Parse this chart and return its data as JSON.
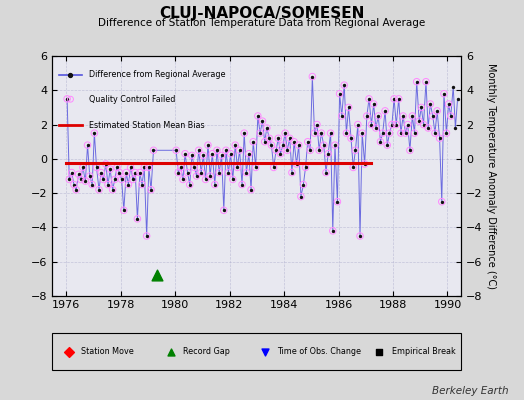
{
  "title": "CLUJ-NAPOCA/SOMESEN",
  "subtitle": "Difference of Station Temperature Data from Regional Average",
  "ylabel": "Monthly Temperature Anomaly Difference (°C)",
  "xlabel_text": "Berkeley Earth",
  "xlim": [
    1975.5,
    1990.5
  ],
  "ylim": [
    -8,
    6
  ],
  "yticks": [
    -8,
    -6,
    -4,
    -2,
    0,
    2,
    4,
    6
  ],
  "xticks": [
    1976,
    1978,
    1980,
    1982,
    1984,
    1986,
    1988,
    1990
  ],
  "bias_line_y": -0.25,
  "bias_line_x_start": 1976.0,
  "bias_line_x_end": 1987.2,
  "record_gap_x": 1979.35,
  "record_gap_y": -6.8,
  "bg_color": "#d8d8d8",
  "plot_bg_color": "#e8e8f0",
  "line_color": "#5555dd",
  "dot_color": "#111111",
  "qc_color": "#ff88ff",
  "bias_color": "#dd0000",
  "monthly_data": [
    [
      1976.04,
      3.5
    ],
    [
      1976.12,
      -1.2
    ],
    [
      1976.21,
      -0.8
    ],
    [
      1976.29,
      -1.5
    ],
    [
      1976.37,
      -1.8
    ],
    [
      1976.46,
      -0.9
    ],
    [
      1976.54,
      -1.2
    ],
    [
      1976.62,
      -0.5
    ],
    [
      1976.71,
      -1.3
    ],
    [
      1976.79,
      0.8
    ],
    [
      1976.87,
      -1.0
    ],
    [
      1976.96,
      -1.5
    ],
    [
      1977.04,
      1.5
    ],
    [
      1977.12,
      -0.5
    ],
    [
      1977.21,
      -1.8
    ],
    [
      1977.29,
      -0.8
    ],
    [
      1977.37,
      -1.2
    ],
    [
      1977.46,
      -0.3
    ],
    [
      1977.54,
      -1.5
    ],
    [
      1977.62,
      -0.6
    ],
    [
      1977.71,
      -1.8
    ],
    [
      1977.79,
      -1.2
    ],
    [
      1977.87,
      -0.5
    ],
    [
      1977.96,
      -0.8
    ],
    [
      1978.04,
      -1.2
    ],
    [
      1978.12,
      -3.0
    ],
    [
      1978.21,
      -0.8
    ],
    [
      1978.29,
      -1.5
    ],
    [
      1978.37,
      -0.5
    ],
    [
      1978.46,
      -1.2
    ],
    [
      1978.54,
      -0.8
    ],
    [
      1978.62,
      -3.5
    ],
    [
      1978.71,
      -0.8
    ],
    [
      1978.79,
      -1.5
    ],
    [
      1978.87,
      -0.5
    ],
    [
      1978.96,
      -4.5
    ],
    [
      1979.04,
      -0.5
    ],
    [
      1979.12,
      -1.8
    ],
    [
      1979.21,
      0.5
    ],
    [
      1980.04,
      0.5
    ],
    [
      1980.12,
      -0.8
    ],
    [
      1980.21,
      -0.5
    ],
    [
      1980.29,
      -1.2
    ],
    [
      1980.37,
      0.3
    ],
    [
      1980.46,
      -0.8
    ],
    [
      1980.54,
      -1.5
    ],
    [
      1980.62,
      0.2
    ],
    [
      1980.71,
      -0.5
    ],
    [
      1980.79,
      -1.0
    ],
    [
      1980.87,
      0.5
    ],
    [
      1980.96,
      -0.8
    ],
    [
      1981.04,
      0.2
    ],
    [
      1981.12,
      -1.2
    ],
    [
      1981.21,
      0.8
    ],
    [
      1981.29,
      -1.0
    ],
    [
      1981.37,
      0.3
    ],
    [
      1981.46,
      -1.5
    ],
    [
      1981.54,
      0.5
    ],
    [
      1981.62,
      -0.8
    ],
    [
      1981.71,
      0.2
    ],
    [
      1981.79,
      -3.0
    ],
    [
      1981.87,
      0.5
    ],
    [
      1981.96,
      -0.8
    ],
    [
      1982.04,
      0.3
    ],
    [
      1982.12,
      -1.2
    ],
    [
      1982.21,
      0.8
    ],
    [
      1982.29,
      -0.5
    ],
    [
      1982.37,
      0.5
    ],
    [
      1982.46,
      -1.5
    ],
    [
      1982.54,
      1.5
    ],
    [
      1982.62,
      -0.8
    ],
    [
      1982.71,
      0.3
    ],
    [
      1982.79,
      -1.8
    ],
    [
      1982.87,
      1.0
    ],
    [
      1982.96,
      -0.5
    ],
    [
      1983.04,
      2.5
    ],
    [
      1983.12,
      1.5
    ],
    [
      1983.21,
      2.2
    ],
    [
      1983.29,
      1.0
    ],
    [
      1983.37,
      1.8
    ],
    [
      1983.46,
      1.2
    ],
    [
      1983.54,
      0.8
    ],
    [
      1983.62,
      -0.5
    ],
    [
      1983.71,
      0.5
    ],
    [
      1983.79,
      1.2
    ],
    [
      1983.87,
      0.3
    ],
    [
      1983.96,
      0.8
    ],
    [
      1984.04,
      1.5
    ],
    [
      1984.12,
      0.5
    ],
    [
      1984.21,
      1.2
    ],
    [
      1984.29,
      -0.8
    ],
    [
      1984.37,
      1.0
    ],
    [
      1984.46,
      -0.3
    ],
    [
      1984.54,
      0.8
    ],
    [
      1984.62,
      -2.2
    ],
    [
      1984.71,
      -1.5
    ],
    [
      1984.79,
      -0.5
    ],
    [
      1984.87,
      1.0
    ],
    [
      1984.96,
      0.5
    ],
    [
      1985.04,
      4.8
    ],
    [
      1985.12,
      1.5
    ],
    [
      1985.21,
      2.0
    ],
    [
      1985.29,
      0.5
    ],
    [
      1985.37,
      1.5
    ],
    [
      1985.46,
      0.8
    ],
    [
      1985.54,
      -0.8
    ],
    [
      1985.62,
      0.3
    ],
    [
      1985.71,
      1.5
    ],
    [
      1985.79,
      -4.2
    ],
    [
      1985.87,
      0.8
    ],
    [
      1985.96,
      -2.5
    ],
    [
      1986.04,
      3.8
    ],
    [
      1986.12,
      2.5
    ],
    [
      1986.21,
      4.3
    ],
    [
      1986.29,
      1.5
    ],
    [
      1986.37,
      3.0
    ],
    [
      1986.46,
      1.2
    ],
    [
      1986.54,
      -0.5
    ],
    [
      1986.62,
      0.5
    ],
    [
      1986.71,
      2.0
    ],
    [
      1986.79,
      -4.5
    ],
    [
      1986.87,
      1.5
    ],
    [
      1986.96,
      -0.3
    ],
    [
      1987.04,
      2.5
    ],
    [
      1987.12,
      3.5
    ],
    [
      1987.21,
      2.0
    ],
    [
      1987.29,
      3.2
    ],
    [
      1987.37,
      1.8
    ],
    [
      1987.46,
      2.5
    ],
    [
      1987.54,
      1.0
    ],
    [
      1987.62,
      1.5
    ],
    [
      1987.71,
      2.8
    ],
    [
      1987.79,
      0.8
    ],
    [
      1987.87,
      1.5
    ],
    [
      1987.96,
      2.0
    ],
    [
      1988.04,
      3.5
    ],
    [
      1988.12,
      2.0
    ],
    [
      1988.21,
      3.5
    ],
    [
      1988.29,
      1.5
    ],
    [
      1988.37,
      2.5
    ],
    [
      1988.46,
      1.5
    ],
    [
      1988.54,
      2.0
    ],
    [
      1988.62,
      0.5
    ],
    [
      1988.71,
      2.5
    ],
    [
      1988.79,
      1.5
    ],
    [
      1988.87,
      4.5
    ],
    [
      1988.96,
      2.2
    ],
    [
      1989.04,
      3.0
    ],
    [
      1989.12,
      2.0
    ],
    [
      1989.21,
      4.5
    ],
    [
      1989.29,
      1.8
    ],
    [
      1989.37,
      3.2
    ],
    [
      1989.46,
      2.5
    ],
    [
      1989.54,
      1.5
    ],
    [
      1989.62,
      2.8
    ],
    [
      1989.71,
      1.2
    ],
    [
      1989.79,
      -2.5
    ],
    [
      1989.87,
      3.8
    ],
    [
      1989.96,
      1.5
    ],
    [
      1990.04,
      3.2
    ],
    [
      1990.12,
      2.5
    ],
    [
      1990.21,
      4.2
    ],
    [
      1990.29,
      1.8
    ],
    [
      1990.37,
      3.5
    ]
  ],
  "qc_indices": [
    0,
    1,
    2,
    3,
    4,
    5,
    6,
    7,
    8,
    9,
    10,
    11,
    12,
    13,
    14,
    15,
    16,
    17,
    18,
    19,
    20,
    21,
    22,
    23,
    24,
    25,
    26,
    27,
    28,
    29,
    30,
    31,
    32,
    33,
    34,
    35,
    36,
    37,
    38,
    39,
    40,
    41,
    42,
    43,
    44,
    45,
    46,
    47,
    48,
    49,
    50,
    51,
    52,
    53,
    54,
    55,
    56,
    57,
    58,
    59,
    60,
    61,
    62,
    63,
    64,
    65,
    66,
    67,
    68,
    69,
    70,
    71,
    72,
    73,
    74,
    75,
    76,
    77,
    78,
    79,
    80,
    81,
    82,
    83,
    84,
    85,
    86,
    87,
    88,
    89,
    90,
    91,
    92,
    93,
    94,
    95,
    96,
    97,
    98,
    99,
    100,
    101,
    102,
    103,
    104,
    105,
    106,
    107,
    108,
    109,
    110,
    111,
    112,
    113,
    114,
    115,
    116,
    117,
    118,
    119,
    120,
    121,
    122,
    123,
    124,
    125,
    126,
    127,
    128,
    129,
    130,
    131,
    132,
    133,
    134,
    135,
    136,
    137,
    138,
    139,
    140,
    141,
    142,
    143,
    144,
    145,
    146,
    147,
    148,
    149,
    150,
    151,
    152,
    153,
    154,
    155,
    156,
    157,
    158,
    159,
    160
  ]
}
